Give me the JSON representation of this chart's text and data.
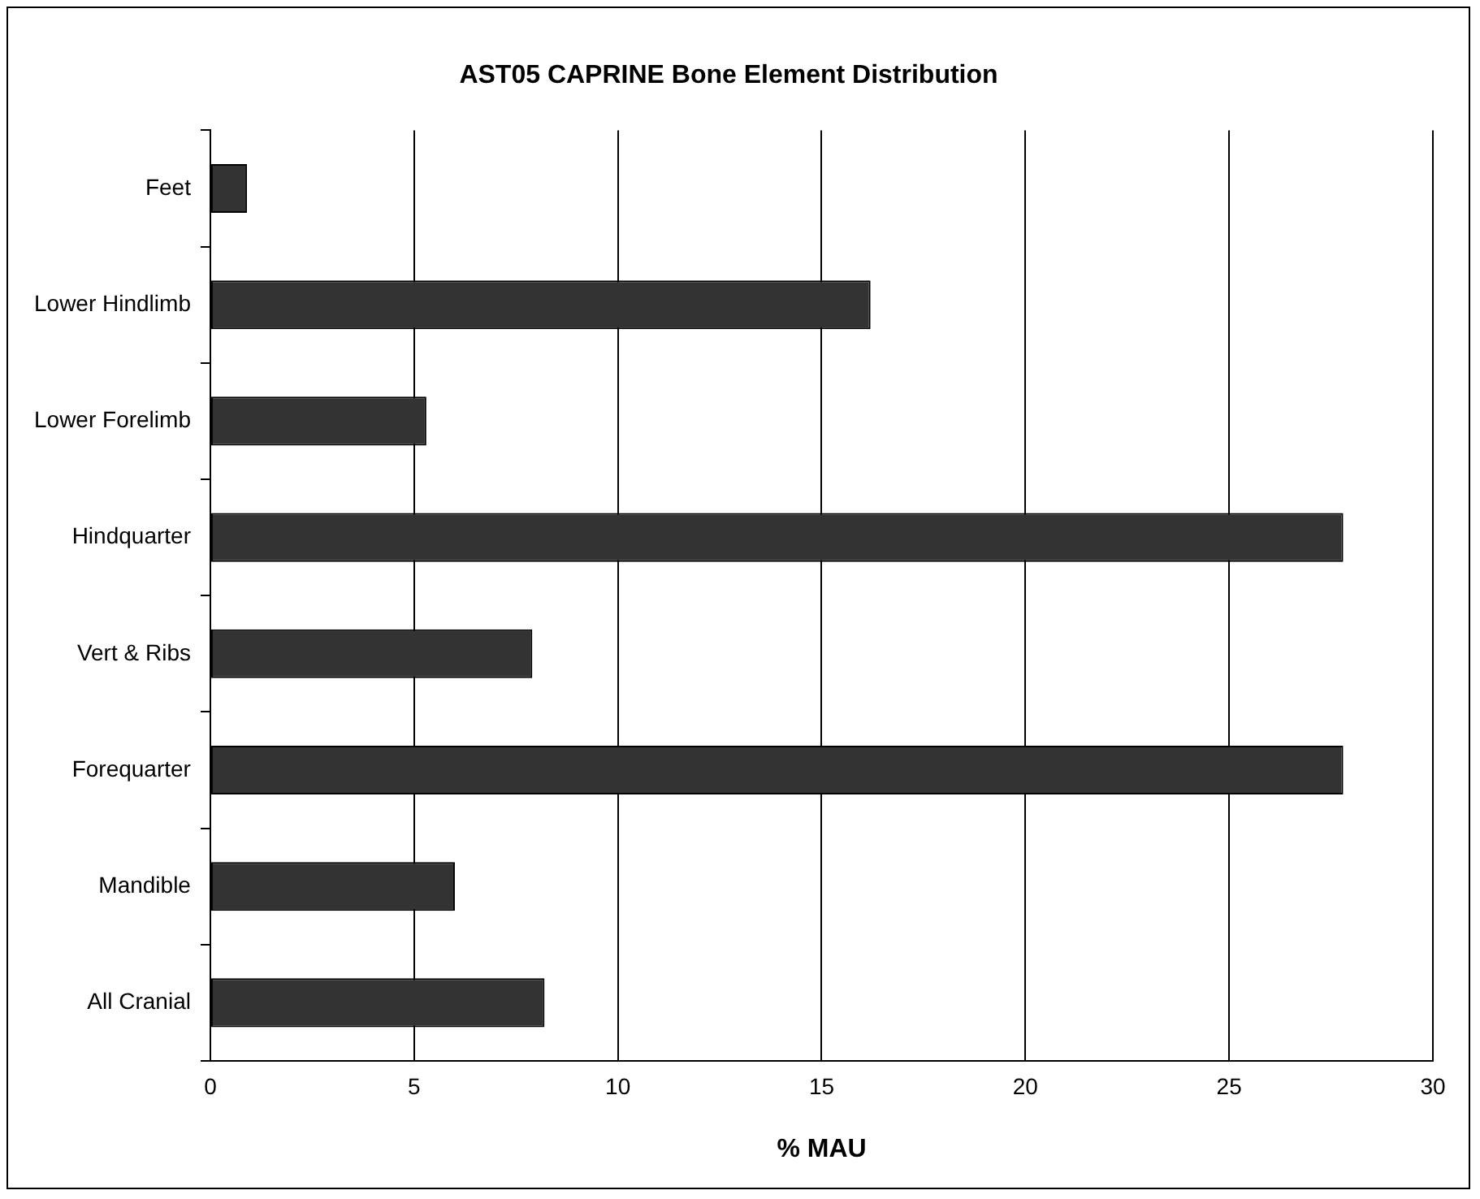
{
  "chart_data": {
    "type": "bar",
    "orientation": "horizontal",
    "title": "AST05 CAPRINE Bone Element Distribution",
    "xlabel": "% MAU",
    "categories": [
      "Feet",
      "Lower Hindlimb",
      "Lower Forelimb",
      "Hindquarter",
      "Vert & Ribs",
      "Forequarter",
      "Mandible",
      "All Cranial"
    ],
    "values": [
      0.9,
      16.2,
      5.3,
      27.8,
      7.9,
      27.8,
      6.0,
      8.2
    ],
    "color": "#333333",
    "xlim": [
      0,
      30
    ],
    "xticks": [
      0,
      5,
      10,
      15,
      20,
      25,
      30
    ],
    "grid": "x",
    "legend": false
  }
}
